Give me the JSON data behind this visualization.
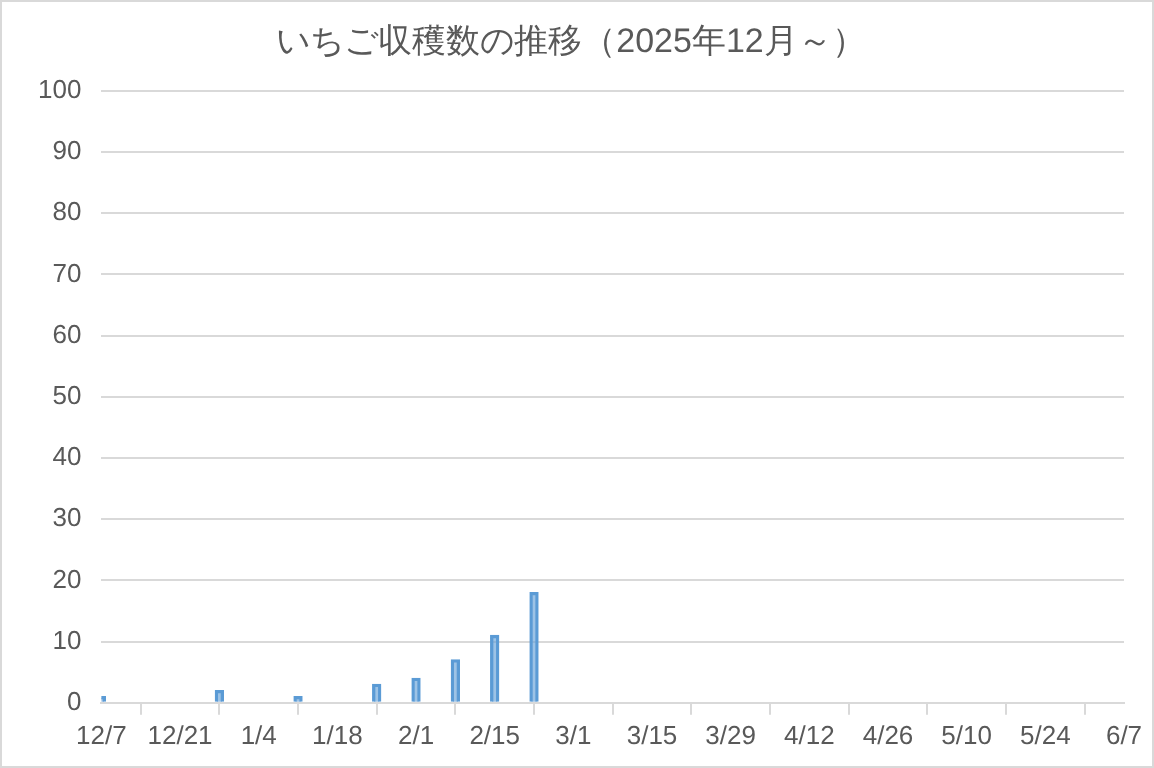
{
  "chart_data": {
    "type": "bar",
    "title": "いちご収穫数の推移（2025年12月～）",
    "x": [
      "2025-12-07",
      "2025-12-28",
      "2026-01-11",
      "2026-01-25",
      "2026-02-01",
      "2026-02-08",
      "2026-02-15",
      "2026-02-22"
    ],
    "values": [
      1,
      2,
      1,
      3,
      4,
      7,
      11,
      18
    ],
    "color": "#5b9bd5",
    "xlim": [
      "2025-12-07",
      "2026-06-07"
    ],
    "xticks": [
      {
        "value": "2025-12-07",
        "label": "12/7"
      },
      {
        "value": "2025-12-21",
        "label": "12/21"
      },
      {
        "value": "2026-01-04",
        "label": "1/4"
      },
      {
        "value": "2026-01-18",
        "label": "1/18"
      },
      {
        "value": "2026-02-01",
        "label": "2/1"
      },
      {
        "value": "2026-02-15",
        "label": "2/15"
      },
      {
        "value": "2026-03-01",
        "label": "3/1"
      },
      {
        "value": "2026-03-15",
        "label": "3/15"
      },
      {
        "value": "2026-03-29",
        "label": "3/29"
      },
      {
        "value": "2026-04-12",
        "label": "4/12"
      },
      {
        "value": "2026-04-26",
        "label": "4/26"
      },
      {
        "value": "2026-05-10",
        "label": "5/10"
      },
      {
        "value": "2026-05-24",
        "label": "5/24"
      },
      {
        "value": "2026-06-07",
        "label": "6/7"
      }
    ],
    "ylim": [
      0,
      100
    ],
    "yticks": [
      0,
      10,
      20,
      30,
      40,
      50,
      60,
      70,
      80,
      90,
      100
    ],
    "grid": "y"
  }
}
